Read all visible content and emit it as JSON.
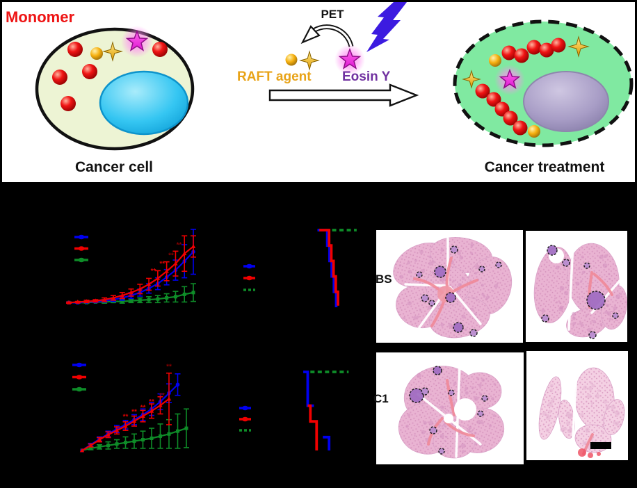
{
  "figure": {
    "top": {
      "monomer_label": "Monomer",
      "cancer_cell_label": "Cancer cell",
      "pet_label": "PET",
      "raft_agent_label": "RAFT agent",
      "eosin_label": "Eosin Y",
      "treatment_label": "Cancer treatment"
    },
    "histology": {
      "row1_label": "BS",
      "row2_label": "C1",
      "scale_bar_present": true
    },
    "colors": {
      "monomer_text": "#ee1414",
      "raft_text": "#e8a317",
      "eosin_text": "#7030a0",
      "cell_fill": "#edf4d4",
      "nucleus_fill": "#2cc4f0",
      "treated_cell_fill": "#80e9a1",
      "treated_nucleus_fill": "#a89dc6",
      "series_blue": "#0000f0",
      "series_red": "#f00000",
      "series_green": "#0e8c28",
      "panel_background": "#000000"
    }
  },
  "chart_data": [
    {
      "id": "tumor-growth-top",
      "type": "line",
      "title": "",
      "note": "Axis, tick and legend text are rendered black on the black background and are not legible; values estimated in relative units (0-100 of plot height).",
      "units": "relative",
      "x_points": 15,
      "legend": {
        "labels_visible": false,
        "position": "upper-left"
      },
      "series": [
        {
          "color": "#0e8c28",
          "marker": "square",
          "values": [
            2,
            2,
            2,
            3,
            3,
            4,
            4,
            5,
            6,
            7,
            8,
            10,
            12,
            16,
            19
          ],
          "errors": [
            1,
            1,
            1,
            1,
            2,
            2,
            3,
            3,
            4,
            5,
            6,
            7,
            9,
            13,
            15
          ]
        },
        {
          "color": "#0000f0",
          "marker": "circle",
          "values": [
            2,
            2,
            3,
            4,
            5,
            7,
            10,
            14,
            19,
            26,
            34,
            45,
            57,
            72,
            88
          ],
          "errors": [
            1,
            1,
            1,
            2,
            2,
            3,
            4,
            5,
            6,
            8,
            10,
            13,
            17,
            28,
            38
          ]
        },
        {
          "color": "#f00000",
          "marker": "triangle",
          "values": [
            2,
            3,
            4,
            5,
            7,
            10,
            14,
            19,
            25,
            33,
            43,
            55,
            68,
            85,
            97
          ],
          "errors": [
            1,
            1,
            2,
            2,
            3,
            4,
            5,
            6,
            8,
            10,
            13,
            16,
            21,
            30,
            18
          ]
        }
      ],
      "annotations": [
        {
          "x": 9.5,
          "v": 52,
          "text": "**",
          "color": "#e00000"
        },
        {
          "x": 10.5,
          "v": 64,
          "text": "**",
          "color": "#e00000"
        },
        {
          "x": 11.5,
          "v": 78,
          "text": "**",
          "color": "#8b0000"
        },
        {
          "x": 12.4,
          "v": 96,
          "text": "**",
          "color": "#8b0000"
        }
      ]
    },
    {
      "id": "survival-top",
      "type": "step",
      "title": "",
      "note": "Kaplan-Meier style survival plot; axis text black on black (not legible). x in relative 0-100 units, y in percent survival.",
      "legend": {
        "labels_visible": false,
        "position": "center-left"
      },
      "series": [
        {
          "color": "#0e8c28",
          "dash": true,
          "segments": [
            [
              [
                52,
                100
              ],
              [
                96,
                100
              ]
            ]
          ]
        },
        {
          "color": "#0000f0",
          "dash": false,
          "segments": [
            [
              [
                52,
                100
              ],
              [
                63,
                100
              ],
              [
                63,
                80
              ],
              [
                65.5,
                80
              ],
              [
                65.5,
                60
              ],
              [
                68,
                60
              ],
              [
                68,
                40
              ],
              [
                70.5,
                40
              ],
              [
                70.5,
                20
              ],
              [
                73,
                20
              ],
              [
                73,
                0
              ]
            ]
          ]
        },
        {
          "color": "#f00000",
          "dash": false,
          "segments": [
            [
              [
                54,
                100
              ],
              [
                65,
                100
              ],
              [
                65,
                80
              ],
              [
                67.5,
                80
              ],
              [
                67.5,
                60
              ],
              [
                70,
                60
              ],
              [
                70,
                40
              ],
              [
                72.5,
                40
              ],
              [
                72.5,
                20
              ],
              [
                75,
                20
              ],
              [
                75,
                2
              ]
            ]
          ]
        }
      ],
      "annotations": []
    },
    {
      "id": "tumor-growth-bottom",
      "type": "line",
      "title": "",
      "note": "Axis, tick and legend text are rendered black on the black background and are not legible; values estimated in relative units (0-100 of plot height).",
      "units": "relative",
      "x_points": 13,
      "legend": {
        "labels_visible": false,
        "position": "upper-left"
      },
      "series": [
        {
          "color": "#0e8c28",
          "marker": "square",
          "values": [
            0,
            3,
            5,
            7,
            9,
            11,
            13,
            15,
            17,
            20,
            23,
            27,
            31
          ],
          "errors": [
            0,
            2,
            3,
            5,
            6,
            8,
            10,
            12,
            14,
            17,
            20,
            24,
            27
          ]
        },
        {
          "color": "#0000f0",
          "marker": "circle",
          "values": [
            0,
            8,
            16,
            23,
            30,
            36,
            43,
            50,
            58,
            68,
            80,
            92
          ],
          "errors": [
            0,
            2,
            3,
            4,
            5,
            6,
            7,
            8,
            9,
            11,
            13,
            15
          ]
        },
        {
          "color": "#f00000",
          "marker": "triangle",
          "values": [
            0,
            7,
            15,
            22,
            28,
            34,
            41,
            48,
            55,
            63,
            72
          ],
          "errors": [
            0,
            2,
            3,
            4,
            5,
            6,
            7,
            8,
            10,
            12,
            36
          ]
        }
      ],
      "annotations": [
        {
          "x": 5,
          "v": 44,
          "text": "**",
          "color": "#e00000"
        },
        {
          "x": 6,
          "v": 51,
          "text": "**",
          "color": "#e00000"
        },
        {
          "x": 7,
          "v": 57,
          "text": "**",
          "color": "#e00000"
        },
        {
          "x": 8,
          "v": 65,
          "text": "**",
          "color": "#e00000"
        },
        {
          "x": 9.2,
          "v": 74,
          "text": "**",
          "color": "#8b0000"
        },
        {
          "x": 10,
          "v": 114,
          "text": "**",
          "color": "#8b0000"
        }
      ]
    },
    {
      "id": "survival-bottom",
      "type": "step",
      "title": "",
      "note": "Kaplan-Meier style survival plot; axis text black on black (not legible). x in relative 0-100 units, y in percent survival.",
      "legend": {
        "labels_visible": false,
        "position": "center-left"
      },
      "series": [
        {
          "color": "#0e8c28",
          "dash": true,
          "segments": [
            [
              [
                44,
                100
              ],
              [
                87,
                100
              ]
            ]
          ]
        },
        {
          "color": "#0000f0",
          "dash": false,
          "segments": [
            [
              [
                36,
                100
              ],
              [
                41,
                100
              ],
              [
                41,
                57
              ],
              [
                48,
                57
              ]
            ],
            [
              [
                58,
                17
              ],
              [
                65,
                17
              ],
              [
                65,
                0
              ]
            ]
          ]
        },
        {
          "color": "#f00000",
          "dash": false,
          "segments": [
            [
              [
                41,
                57
              ],
              [
                44,
                57
              ],
              [
                44,
                37
              ],
              [
                51,
                37
              ],
              [
                51,
                0
              ]
            ]
          ]
        }
      ],
      "annotations": []
    }
  ]
}
